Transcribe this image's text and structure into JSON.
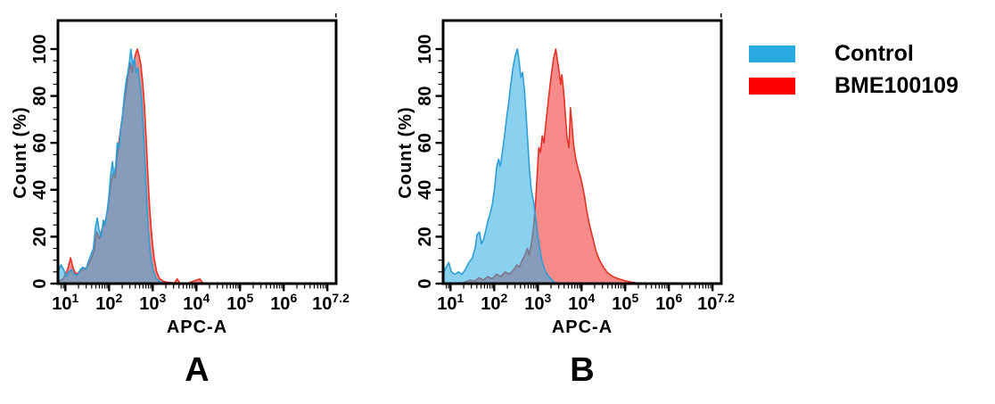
{
  "figure": {
    "background": "#ffffff"
  },
  "chart_data": {
    "type": "area",
    "subtype": "flow-cytometry-overlay-histogram",
    "xlabel": "APC-A",
    "ylabel": "Count (%)",
    "x_scale": "log10",
    "x_range_log": [
      0.83,
      7.2
    ],
    "x_tick_exponent_labels": [
      "1",
      "2",
      "3",
      "4",
      "5",
      "6",
      "7.2"
    ],
    "x_tick_base": "10",
    "ylim": [
      0,
      100
    ],
    "y_ticks": [
      0,
      20,
      40,
      60,
      80,
      100
    ],
    "grid": false,
    "legend_position": "top-right-outside",
    "legend": [
      {
        "label": "Control",
        "color": "#29ABE2"
      },
      {
        "label": "BME100109",
        "color": "#FF0000"
      }
    ],
    "style": {
      "control_stroke": "#2E9FD6",
      "control_fill": "#29ABE2",
      "control_fill_opacity": 0.55,
      "treated_stroke": "#E43327",
      "treated_fill": "#EF2B28",
      "treated_fill_opacity": 0.55,
      "axis_color": "#000000"
    },
    "panels": [
      {
        "letter": "A",
        "description": "Control and BME100109 histograms almost fully overlapping, peaks near 10^2.5-10^2.7",
        "series": [
          {
            "name": "BME100109",
            "role": "treated",
            "points_logx_pct": [
              [
                0.83,
                1
              ],
              [
                0.95,
                2
              ],
              [
                1.05,
                6
              ],
              [
                1.12,
                11
              ],
              [
                1.17,
                7
              ],
              [
                1.24,
                4
              ],
              [
                1.32,
                5
              ],
              [
                1.4,
                6
              ],
              [
                1.5,
                7
              ],
              [
                1.58,
                10
              ],
              [
                1.66,
                14
              ],
              [
                1.72,
                22
              ],
              [
                1.78,
                19
              ],
              [
                1.85,
                24
              ],
              [
                1.92,
                27
              ],
              [
                1.98,
                33
              ],
              [
                2.04,
                42
              ],
              [
                2.09,
                47
              ],
              [
                2.14,
                45
              ],
              [
                2.19,
                55
              ],
              [
                2.25,
                64
              ],
              [
                2.31,
                72
              ],
              [
                2.37,
                80
              ],
              [
                2.43,
                88
              ],
              [
                2.49,
                94
              ],
              [
                2.53,
                90
              ],
              [
                2.57,
                95
              ],
              [
                2.61,
                98
              ],
              [
                2.65,
                100
              ],
              [
                2.69,
                97
              ],
              [
                2.73,
                93
              ],
              [
                2.77,
                86
              ],
              [
                2.81,
                76
              ],
              [
                2.85,
                62
              ],
              [
                2.89,
                46
              ],
              [
                2.93,
                32
              ],
              [
                2.98,
                20
              ],
              [
                3.03,
                11
              ],
              [
                3.09,
                5
              ],
              [
                3.16,
                2
              ],
              [
                3.25,
                1
              ],
              [
                3.35,
                0.5
              ],
              [
                3.5,
                0.3
              ],
              [
                3.56,
                2
              ],
              [
                3.62,
                0.3
              ],
              [
                3.8,
                0.2
              ],
              [
                4.08,
                2
              ],
              [
                4.15,
                0.2
              ],
              [
                4.4,
                0
              ]
            ]
          },
          {
            "name": "Control",
            "role": "control",
            "points_logx_pct": [
              [
                0.83,
                5
              ],
              [
                0.9,
                8
              ],
              [
                0.96,
                6
              ],
              [
                1.02,
                3
              ],
              [
                1.08,
                5
              ],
              [
                1.14,
                6
              ],
              [
                1.2,
                4
              ],
              [
                1.28,
                3.5
              ],
              [
                1.34,
                6
              ],
              [
                1.4,
                7
              ],
              [
                1.47,
                6
              ],
              [
                1.52,
                9
              ],
              [
                1.58,
                12
              ],
              [
                1.64,
                15
              ],
              [
                1.69,
                24
              ],
              [
                1.73,
                28
              ],
              [
                1.77,
                23
              ],
              [
                1.82,
                20
              ],
              [
                1.87,
                27
              ],
              [
                1.91,
                25
              ],
              [
                1.96,
                31
              ],
              [
                2.0,
                38
              ],
              [
                2.04,
                47
              ],
              [
                2.08,
                52
              ],
              [
                2.11,
                46
              ],
              [
                2.15,
                50
              ],
              [
                2.19,
                60
              ],
              [
                2.23,
                58
              ],
              [
                2.27,
                66
              ],
              [
                2.31,
                72
              ],
              [
                2.35,
                80
              ],
              [
                2.39,
                86
              ],
              [
                2.43,
                90
              ],
              [
                2.47,
                95
              ],
              [
                2.5,
                100
              ],
              [
                2.54,
                93
              ],
              [
                2.58,
                96
              ],
              [
                2.62,
                90
              ],
              [
                2.66,
                92
              ],
              [
                2.7,
                86
              ],
              [
                2.74,
                80
              ],
              [
                2.78,
                68
              ],
              [
                2.82,
                52
              ],
              [
                2.86,
                36
              ],
              [
                2.9,
                22
              ],
              [
                2.95,
                12
              ],
              [
                3.0,
                6
              ],
              [
                3.07,
                2.5
              ],
              [
                3.15,
                1
              ],
              [
                3.25,
                0.3
              ],
              [
                3.4,
                0
              ]
            ]
          }
        ]
      },
      {
        "letter": "B",
        "description": "BME100109 histogram shifted right (~1 decade) versus Control; Control peak near 10^2.5, BME100109 peak near 10^3.4 with secondary spike near 10^3.75, tail to 10^5",
        "series": [
          {
            "name": "BME100109",
            "role": "treated",
            "points_logx_pct": [
              [
                1.3,
                0.5
              ],
              [
                1.45,
                1.5
              ],
              [
                1.55,
                1
              ],
              [
                1.65,
                2.5
              ],
              [
                1.75,
                1.5
              ],
              [
                1.85,
                3
              ],
              [
                1.95,
                2
              ],
              [
                2.05,
                4
              ],
              [
                2.15,
                3
              ],
              [
                2.25,
                5
              ],
              [
                2.35,
                4
              ],
              [
                2.45,
                6
              ],
              [
                2.52,
                8
              ],
              [
                2.58,
                7
              ],
              [
                2.64,
                10
              ],
              [
                2.7,
                12
              ],
              [
                2.76,
                15
              ],
              [
                2.8,
                12
              ],
              [
                2.86,
                18
              ],
              [
                2.9,
                24
              ],
              [
                2.94,
                32
              ],
              [
                2.98,
                45
              ],
              [
                3.02,
                58
              ],
              [
                3.06,
                56
              ],
              [
                3.1,
                63
              ],
              [
                3.14,
                60
              ],
              [
                3.18,
                68
              ],
              [
                3.24,
                78
              ],
              [
                3.3,
                88
              ],
              [
                3.36,
                96
              ],
              [
                3.41,
                100
              ],
              [
                3.45,
                95
              ],
              [
                3.49,
                90
              ],
              [
                3.52,
                85
              ],
              [
                3.55,
                89
              ],
              [
                3.59,
                82
              ],
              [
                3.63,
                72
              ],
              [
                3.67,
                62
              ],
              [
                3.71,
                58
              ],
              [
                3.745,
                75
              ],
              [
                3.78,
                68
              ],
              [
                3.82,
                59
              ],
              [
                3.87,
                53
              ],
              [
                3.92,
                49
              ],
              [
                3.97,
                46
              ],
              [
                4.02,
                42
              ],
              [
                4.07,
                37
              ],
              [
                4.12,
                31
              ],
              [
                4.17,
                26
              ],
              [
                4.25,
                20
              ],
              [
                4.33,
                14
              ],
              [
                4.41,
                10
              ],
              [
                4.5,
                7
              ],
              [
                4.6,
                4.5
              ],
              [
                4.72,
                3
              ],
              [
                4.85,
                2
              ],
              [
                5.0,
                1.2
              ],
              [
                5.15,
                0.6
              ],
              [
                5.35,
                0
              ]
            ]
          },
          {
            "name": "Control",
            "role": "control",
            "points_logx_pct": [
              [
                0.83,
                4
              ],
              [
                0.9,
                7
              ],
              [
                0.96,
                9
              ],
              [
                1.02,
                5
              ],
              [
                1.1,
                4
              ],
              [
                1.18,
                5
              ],
              [
                1.26,
                4
              ],
              [
                1.34,
                6
              ],
              [
                1.42,
                9
              ],
              [
                1.5,
                11
              ],
              [
                1.56,
                15
              ],
              [
                1.61,
                21
              ],
              [
                1.66,
                22
              ],
              [
                1.71,
                17
              ],
              [
                1.76,
                19
              ],
              [
                1.81,
                23
              ],
              [
                1.86,
                27
              ],
              [
                1.91,
                30
              ],
              [
                1.96,
                34
              ],
              [
                2.01,
                41
              ],
              [
                2.06,
                50
              ],
              [
                2.1,
                53
              ],
              [
                2.14,
                50
              ],
              [
                2.18,
                55
              ],
              [
                2.23,
                62
              ],
              [
                2.28,
                70
              ],
              [
                2.33,
                77
              ],
              [
                2.38,
                85
              ],
              [
                2.43,
                92
              ],
              [
                2.48,
                97
              ],
              [
                2.53,
                100
              ],
              [
                2.57,
                95
              ],
              [
                2.61,
                88
              ],
              [
                2.65,
                90
              ],
              [
                2.69,
                83
              ],
              [
                2.73,
                72
              ],
              [
                2.77,
                60
              ],
              [
                2.81,
                48
              ],
              [
                2.85,
                40
              ],
              [
                2.9,
                35
              ],
              [
                2.95,
                28
              ],
              [
                3.0,
                20
              ],
              [
                3.05,
                14
              ],
              [
                3.1,
                9
              ],
              [
                3.18,
                5
              ],
              [
                3.25,
                3
              ],
              [
                3.35,
                1
              ],
              [
                3.45,
                0
              ]
            ]
          }
        ]
      }
    ]
  }
}
